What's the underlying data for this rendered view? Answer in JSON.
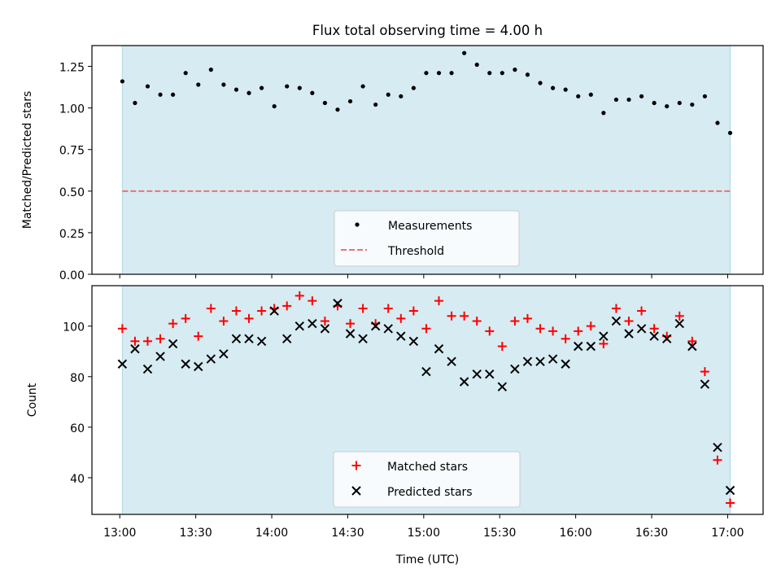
{
  "chart_data": [
    {
      "type": "scatter",
      "title": "Flux total observing time = 4.00 h",
      "ylabel": "Matched/Predicted stars",
      "xlabel": "",
      "xlim": [
        "12:49",
        "17:14"
      ],
      "ylim": [
        0.0,
        1.375
      ],
      "yticks": [
        "0.00",
        "0.25",
        "0.50",
        "0.75",
        "1.00",
        "1.25"
      ],
      "grid": false,
      "legend_position": "bottom-center",
      "observing_window": [
        "13:01",
        "17:01"
      ],
      "observing_window_color": "#add8e6",
      "series": [
        {
          "name": "Measurements",
          "marker": "dot",
          "color": "#000000",
          "x": [
            "13:01",
            "13:06",
            "13:11",
            "13:16",
            "13:21",
            "13:26",
            "13:31",
            "13:36",
            "13:41",
            "13:46",
            "13:51",
            "13:56",
            "14:01",
            "14:06",
            "14:11",
            "14:16",
            "14:21",
            "14:26",
            "14:31",
            "14:36",
            "14:41",
            "14:46",
            "14:51",
            "14:56",
            "15:01",
            "15:06",
            "15:11",
            "15:16",
            "15:21",
            "15:26",
            "15:31",
            "15:36",
            "15:41",
            "15:46",
            "15:51",
            "15:56",
            "16:01",
            "16:06",
            "16:11",
            "16:16",
            "16:21",
            "16:26",
            "16:31",
            "16:36",
            "16:41",
            "16:46",
            "16:51",
            "16:56",
            "17:01"
          ],
          "y": [
            1.16,
            1.03,
            1.13,
            1.08,
            1.08,
            1.21,
            1.14,
            1.23,
            1.14,
            1.11,
            1.09,
            1.12,
            1.01,
            1.13,
            1.12,
            1.09,
            1.03,
            0.99,
            1.04,
            1.13,
            1.02,
            1.08,
            1.07,
            1.12,
            1.21,
            1.21,
            1.21,
            1.33,
            1.26,
            1.21,
            1.21,
            1.23,
            1.2,
            1.15,
            1.12,
            1.11,
            1.07,
            1.08,
            0.97,
            1.05,
            1.05,
            1.07,
            1.03,
            1.01,
            1.03,
            1.02,
            1.07,
            0.91,
            0.85
          ]
        },
        {
          "name": "Threshold",
          "style": "dashed",
          "color": "#f07070",
          "y_constant": 0.5
        }
      ]
    },
    {
      "type": "scatter",
      "title": "",
      "xlabel": "Time (UTC)",
      "ylabel": "Count",
      "xlim": [
        "12:49",
        "17:14"
      ],
      "ylim": [
        25.5,
        116
      ],
      "xticks": [
        "13:00",
        "13:30",
        "14:00",
        "14:30",
        "15:00",
        "15:30",
        "16:00",
        "16:30",
        "17:00"
      ],
      "yticks": [
        "40",
        "60",
        "80",
        "100"
      ],
      "grid": false,
      "legend_position": "bottom-center",
      "observing_window": [
        "13:01",
        "17:01"
      ],
      "observing_window_color": "#add8e6",
      "series": [
        {
          "name": "Matched stars",
          "marker": "plus",
          "color": "#ff0000",
          "x": [
            "13:01",
            "13:06",
            "13:11",
            "13:16",
            "13:21",
            "13:26",
            "13:31",
            "13:36",
            "13:41",
            "13:46",
            "13:51",
            "13:56",
            "14:01",
            "14:06",
            "14:11",
            "14:16",
            "14:21",
            "14:26",
            "14:31",
            "14:36",
            "14:41",
            "14:46",
            "14:51",
            "14:56",
            "15:01",
            "15:06",
            "15:11",
            "15:16",
            "15:21",
            "15:26",
            "15:31",
            "15:36",
            "15:41",
            "15:46",
            "15:51",
            "15:56",
            "16:01",
            "16:06",
            "16:11",
            "16:16",
            "16:21",
            "16:26",
            "16:31",
            "16:36",
            "16:41",
            "16:46",
            "16:51",
            "16:56",
            "17:01"
          ],
          "y": [
            99,
            94,
            94,
            95,
            101,
            103,
            96,
            107,
            102,
            106,
            103,
            106,
            107,
            108,
            112,
            110,
            102,
            108,
            101,
            107,
            101,
            107,
            103,
            106,
            99,
            110,
            104,
            104,
            102,
            98,
            92,
            102,
            103,
            99,
            98,
            95,
            98,
            100,
            93,
            107,
            102,
            106,
            99,
            96,
            104,
            94,
            82,
            47,
            30
          ]
        },
        {
          "name": "Predicted stars",
          "marker": "x",
          "color": "#000000",
          "x": [
            "13:01",
            "13:06",
            "13:11",
            "13:16",
            "13:21",
            "13:26",
            "13:31",
            "13:36",
            "13:41",
            "13:46",
            "13:51",
            "13:56",
            "14:01",
            "14:06",
            "14:11",
            "14:16",
            "14:21",
            "14:26",
            "14:31",
            "14:36",
            "14:41",
            "14:46",
            "14:51",
            "14:56",
            "15:01",
            "15:06",
            "15:11",
            "15:16",
            "15:21",
            "15:26",
            "15:31",
            "15:36",
            "15:41",
            "15:46",
            "15:51",
            "15:56",
            "16:01",
            "16:06",
            "16:11",
            "16:16",
            "16:21",
            "16:26",
            "16:31",
            "16:36",
            "16:41",
            "16:46",
            "16:51",
            "16:56",
            "17:01"
          ],
          "y": [
            85,
            91,
            83,
            88,
            93,
            85,
            84,
            87,
            89,
            95,
            95,
            94,
            106,
            95,
            100,
            101,
            99,
            109,
            97,
            95,
            100,
            99,
            96,
            94,
            82,
            91,
            86,
            78,
            81,
            81,
            76,
            83,
            86,
            86,
            87,
            85,
            92,
            92,
            96,
            102,
            97,
            99,
            96,
            95,
            101,
            92,
            77,
            52,
            35
          ]
        }
      ]
    }
  ]
}
